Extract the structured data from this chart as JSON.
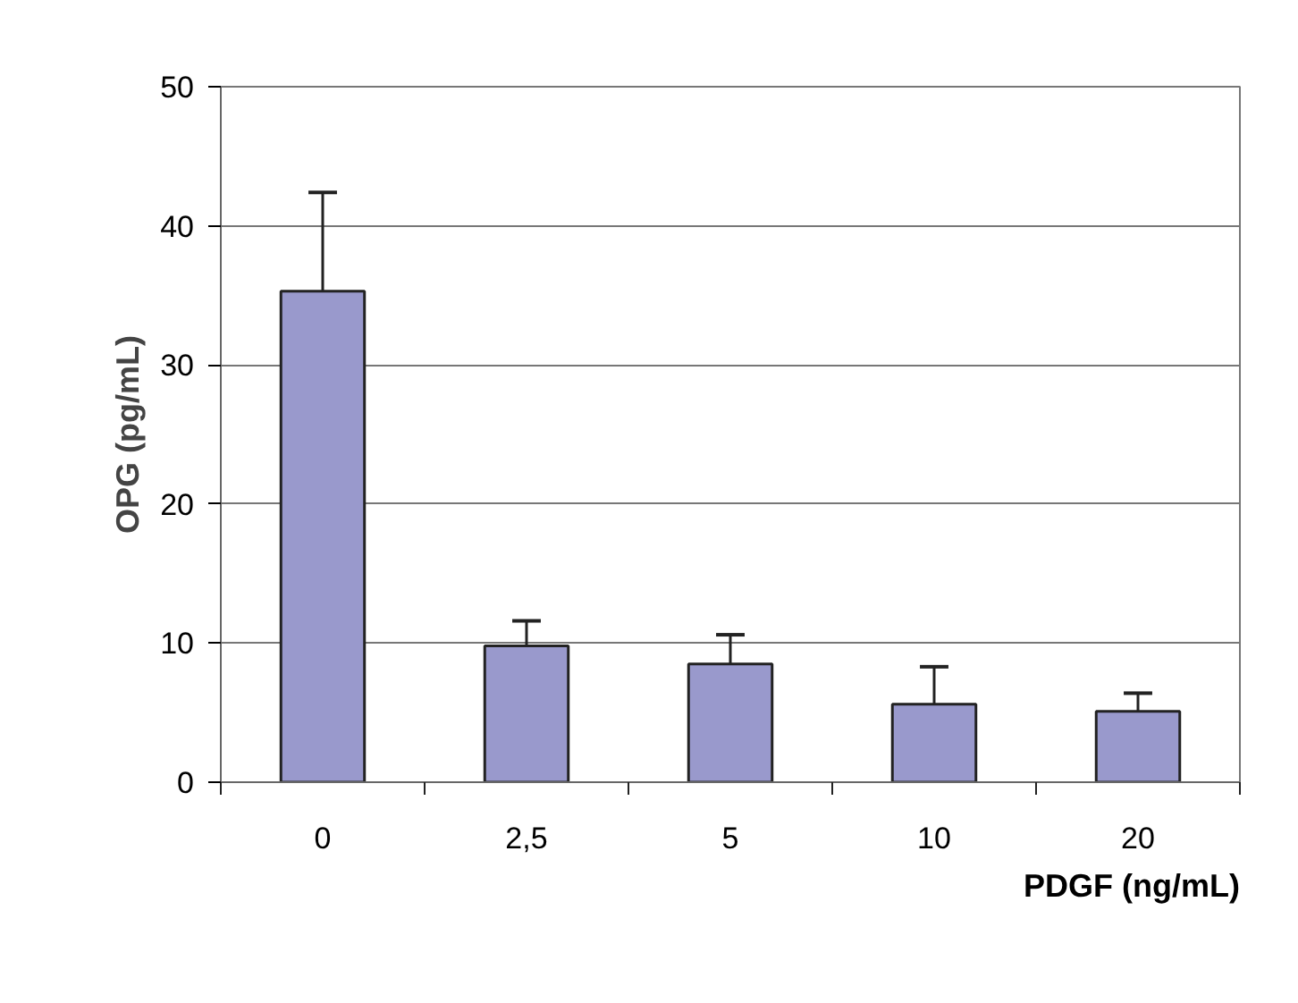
{
  "chart_data": {
    "type": "bar",
    "xlabel": "PDGF (ng/mL)",
    "ylabel": "OPG (pg/mL)",
    "categories": [
      "0",
      "2,5",
      "5",
      "10",
      "20"
    ],
    "values": [
      35.3,
      9.8,
      8.5,
      5.6,
      5.1
    ],
    "errors": [
      [
        35.3,
        42.4
      ],
      [
        9.8,
        11.6
      ],
      [
        8.5,
        10.6
      ],
      [
        5.6,
        8.3
      ],
      [
        5.1,
        6.4
      ]
    ],
    "color": "#9999cc",
    "ylim": [
      0,
      50
    ],
    "yticks": [
      0,
      10,
      20,
      30,
      40,
      50
    ],
    "grid": "y"
  }
}
